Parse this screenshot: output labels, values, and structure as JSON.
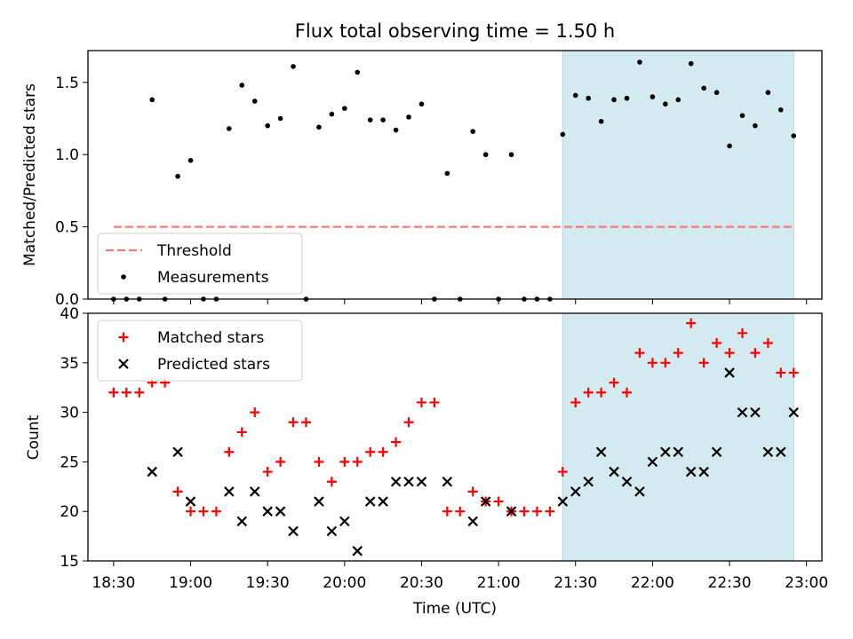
{
  "chart_data": [
    {
      "type": "scatter",
      "title": "Flux total observing time = 1.50 h",
      "xlabel": "",
      "ylabel": "Matched/Predicted stars",
      "ylim": [
        0,
        1.72
      ],
      "yticks": [
        "0.0",
        "0.5",
        "1.0",
        "1.5"
      ],
      "x_range_minutes": [
        "18:20",
        "23:06"
      ],
      "shaded_interval": [
        "21:25",
        "22:55"
      ],
      "shade_color": "#d3eaf0",
      "legend_position": "lower-left",
      "threshold": {
        "name": "Threshold",
        "value": 0.5,
        "x_start": "18:30",
        "x_end": "22:55",
        "color": "#f47a7a"
      },
      "series": [
        {
          "name": "Measurements",
          "color": "#000000",
          "points": [
            [
              "18:30",
              0.0
            ],
            [
              "18:35",
              0.0
            ],
            [
              "18:40",
              0.0
            ],
            [
              "18:45",
              1.38
            ],
            [
              "18:50",
              0.0
            ],
            [
              "18:55",
              0.85
            ],
            [
              "19:00",
              0.96
            ],
            [
              "19:05",
              0.0
            ],
            [
              "19:10",
              0.0
            ],
            [
              "19:15",
              1.18
            ],
            [
              "19:20",
              1.48
            ],
            [
              "19:25",
              1.37
            ],
            [
              "19:30",
              1.2
            ],
            [
              "19:35",
              1.25
            ],
            [
              "19:40",
              1.61
            ],
            [
              "19:45",
              0.0
            ],
            [
              "19:50",
              1.19
            ],
            [
              "19:55",
              1.28
            ],
            [
              "20:00",
              1.32
            ],
            [
              "20:05",
              1.57
            ],
            [
              "20:10",
              1.24
            ],
            [
              "20:15",
              1.24
            ],
            [
              "20:20",
              1.17
            ],
            [
              "20:25",
              1.26
            ],
            [
              "20:30",
              1.35
            ],
            [
              "20:35",
              0.0
            ],
            [
              "20:40",
              0.87
            ],
            [
              "20:45",
              0.0
            ],
            [
              "20:50",
              1.16
            ],
            [
              "20:55",
              1.0
            ],
            [
              "21:00",
              0.0
            ],
            [
              "21:05",
              1.0
            ],
            [
              "21:10",
              0.0
            ],
            [
              "21:15",
              0.0
            ],
            [
              "21:20",
              0.0
            ],
            [
              "21:25",
              1.14
            ],
            [
              "21:30",
              1.41
            ],
            [
              "21:35",
              1.39
            ],
            [
              "21:40",
              1.23
            ],
            [
              "21:45",
              1.38
            ],
            [
              "21:50",
              1.39
            ],
            [
              "21:55",
              1.64
            ],
            [
              "22:00",
              1.4
            ],
            [
              "22:05",
              1.35
            ],
            [
              "22:10",
              1.38
            ],
            [
              "22:15",
              1.63
            ],
            [
              "22:20",
              1.46
            ],
            [
              "22:25",
              1.43
            ],
            [
              "22:30",
              1.06
            ],
            [
              "22:35",
              1.27
            ],
            [
              "22:40",
              1.2
            ],
            [
              "22:45",
              1.43
            ],
            [
              "22:50",
              1.31
            ],
            [
              "22:55",
              1.13
            ]
          ]
        }
      ]
    },
    {
      "type": "scatter",
      "title": "",
      "xlabel": "Time (UTC)",
      "ylabel": "Count",
      "ylim": [
        15,
        40
      ],
      "yticks": [
        "15",
        "20",
        "25",
        "30",
        "35",
        "40"
      ],
      "xticks": [
        "18:30",
        "19:00",
        "19:30",
        "20:00",
        "20:30",
        "21:00",
        "21:30",
        "22:00",
        "22:30",
        "23:00"
      ],
      "x_range_minutes": [
        "18:20",
        "23:06"
      ],
      "shaded_interval": [
        "21:25",
        "22:55"
      ],
      "shade_color": "#d3eaf0",
      "legend_position": "upper-left",
      "series": [
        {
          "name": "Matched stars",
          "marker": "plus",
          "color": "#ff0000",
          "points": [
            [
              "18:30",
              32
            ],
            [
              "18:35",
              32
            ],
            [
              "18:40",
              32
            ],
            [
              "18:45",
              33
            ],
            [
              "18:50",
              33
            ],
            [
              "18:55",
              22
            ],
            [
              "19:00",
              20
            ],
            [
              "19:05",
              20
            ],
            [
              "19:10",
              20
            ],
            [
              "19:15",
              26
            ],
            [
              "19:20",
              28
            ],
            [
              "19:25",
              30
            ],
            [
              "19:30",
              24
            ],
            [
              "19:35",
              25
            ],
            [
              "19:40",
              29
            ],
            [
              "19:45",
              29
            ],
            [
              "19:50",
              25
            ],
            [
              "19:55",
              23
            ],
            [
              "20:00",
              25
            ],
            [
              "20:05",
              25
            ],
            [
              "20:10",
              26
            ],
            [
              "20:15",
              26
            ],
            [
              "20:20",
              27
            ],
            [
              "20:25",
              29
            ],
            [
              "20:30",
              31
            ],
            [
              "20:35",
              31
            ],
            [
              "20:40",
              20
            ],
            [
              "20:45",
              20
            ],
            [
              "20:50",
              22
            ],
            [
              "20:55",
              21
            ],
            [
              "21:00",
              21
            ],
            [
              "21:05",
              20
            ],
            [
              "21:10",
              20
            ],
            [
              "21:15",
              20
            ],
            [
              "21:20",
              20
            ],
            [
              "21:25",
              24
            ],
            [
              "21:30",
              31
            ],
            [
              "21:35",
              32
            ],
            [
              "21:40",
              32
            ],
            [
              "21:45",
              33
            ],
            [
              "21:50",
              32
            ],
            [
              "21:55",
              36
            ],
            [
              "22:00",
              35
            ],
            [
              "22:05",
              35
            ],
            [
              "22:10",
              36
            ],
            [
              "22:15",
              39
            ],
            [
              "22:20",
              35
            ],
            [
              "22:25",
              37
            ],
            [
              "22:30",
              36
            ],
            [
              "22:35",
              38
            ],
            [
              "22:40",
              36
            ],
            [
              "22:45",
              37
            ],
            [
              "22:50",
              34
            ],
            [
              "22:55",
              34
            ]
          ]
        },
        {
          "name": "Predicted stars",
          "marker": "x",
          "color": "#000000",
          "points": [
            [
              "18:45",
              24
            ],
            [
              "18:55",
              26
            ],
            [
              "19:00",
              21
            ],
            [
              "19:15",
              22
            ],
            [
              "19:20",
              19
            ],
            [
              "19:25",
              22
            ],
            [
              "19:30",
              20
            ],
            [
              "19:35",
              20
            ],
            [
              "19:40",
              18
            ],
            [
              "19:50",
              21
            ],
            [
              "19:55",
              18
            ],
            [
              "20:00",
              19
            ],
            [
              "20:05",
              16
            ],
            [
              "20:10",
              21
            ],
            [
              "20:15",
              21
            ],
            [
              "20:20",
              23
            ],
            [
              "20:25",
              23
            ],
            [
              "20:30",
              23
            ],
            [
              "20:40",
              23
            ],
            [
              "20:50",
              19
            ],
            [
              "20:55",
              21
            ],
            [
              "21:05",
              20
            ],
            [
              "21:25",
              21
            ],
            [
              "21:30",
              22
            ],
            [
              "21:35",
              23
            ],
            [
              "21:40",
              26
            ],
            [
              "21:45",
              24
            ],
            [
              "21:50",
              23
            ],
            [
              "21:55",
              22
            ],
            [
              "22:00",
              25
            ],
            [
              "22:05",
              26
            ],
            [
              "22:10",
              26
            ],
            [
              "22:15",
              24
            ],
            [
              "22:20",
              24
            ],
            [
              "22:25",
              26
            ],
            [
              "22:30",
              34
            ],
            [
              "22:35",
              30
            ],
            [
              "22:40",
              30
            ],
            [
              "22:45",
              26
            ],
            [
              "22:50",
              26
            ],
            [
              "22:55",
              30
            ]
          ]
        }
      ]
    }
  ]
}
